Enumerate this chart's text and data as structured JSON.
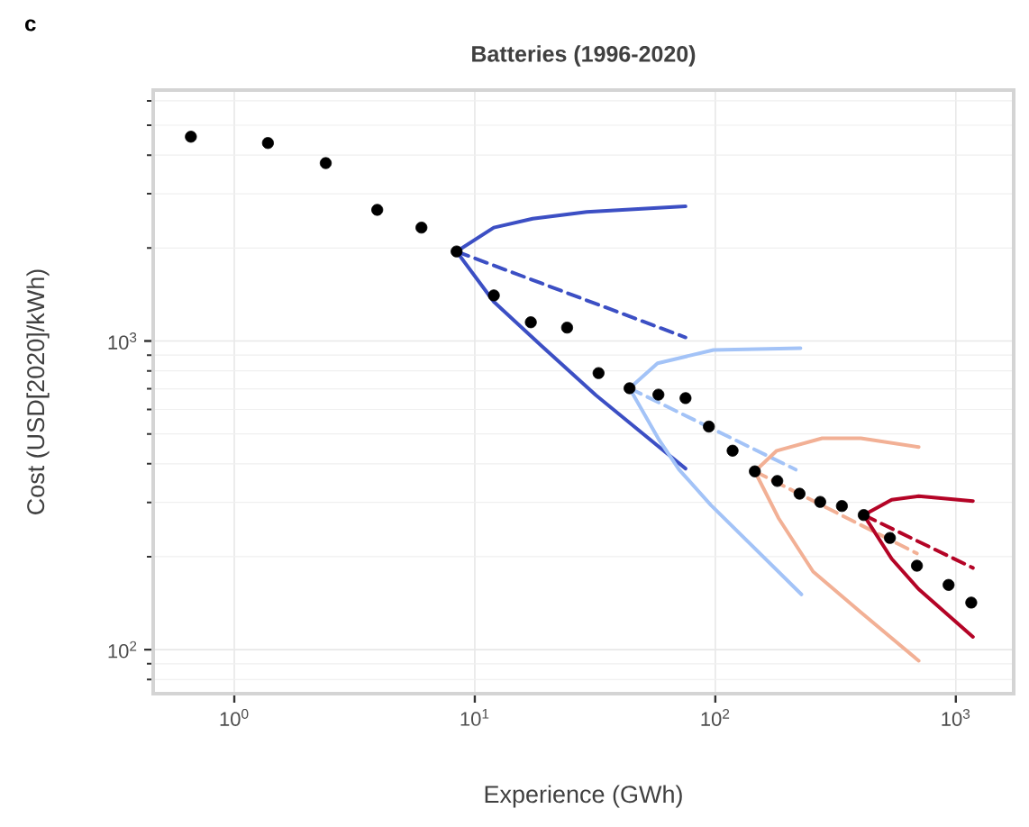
{
  "chart_data": {
    "type": "line",
    "title": "Batteries (1996-2020)",
    "xlabel": "Experience (GWh)",
    "ylabel": "Cost (USD[2020]/kWh)",
    "annotations": [
      "c"
    ],
    "log": "xy",
    "grid": true,
    "xlim": [
      0.46,
      1740
    ],
    "ylim": [
      72,
      6500
    ],
    "xticks": [
      {
        "value": 1,
        "label": "10$^{0}$"
      },
      {
        "value": 10,
        "label": "10$^{1}$"
      },
      {
        "value": 100,
        "label": "10$^{2}$"
      },
      {
        "value": 1000,
        "label": "10$^{3}$"
      }
    ],
    "yticks": [
      {
        "value": 100,
        "label": "10$^{2}$"
      },
      {
        "value": 1000,
        "label": "10$^{3}$"
      }
    ],
    "series": [
      {
        "color": "#3c4fc4",
        "line_style": "solid",
        "x": [
          8.4,
          12.0,
          17.4,
          29.2,
          75.2
        ],
        "values": [
          1950,
          2330,
          2490,
          2620,
          2730
        ]
      },
      {
        "color": "#3c4fc4",
        "line_style": "dashed",
        "x": [
          8.4,
          75.2
        ],
        "values": [
          1950,
          1027
        ]
      },
      {
        "color": "#3c4fc4",
        "line_style": "solid",
        "x": [
          8.4,
          12.0,
          19.0,
          31.9,
          75.2
        ],
        "values": [
          1950,
          1340,
          962,
          667,
          386
        ]
      },
      {
        "color": "#a3c3f7",
        "line_style": "solid",
        "x": [
          44.0,
          57.5,
          98.2,
          226
        ],
        "values": [
          703,
          847,
          935,
          948
        ]
      },
      {
        "color": "#a3c3f7",
        "line_style": "dashed",
        "x": [
          44.0,
          216
        ],
        "values": [
          703,
          383
        ]
      },
      {
        "color": "#a3c3f7",
        "line_style": "solid",
        "x": [
          44.0,
          58.5,
          70.7,
          95.8,
          228
        ],
        "values": [
          703,
          477,
          383,
          294,
          151
        ]
      },
      {
        "color": "#f2b095",
        "line_style": "solid",
        "x": [
          146,
          180,
          278,
          403,
          701
        ],
        "values": [
          378,
          441,
          484,
          484,
          453
        ]
      },
      {
        "color": "#f2b095",
        "line_style": "dashed",
        "x": [
          146,
          689
        ],
        "values": [
          378,
          205
        ]
      },
      {
        "color": "#f2b095",
        "line_style": "solid",
        "x": [
          146,
          183,
          255,
          403,
          701
        ],
        "values": [
          378,
          267,
          179,
          132,
          92
        ]
      },
      {
        "color": "#b40426",
        "line_style": "solid",
        "x": [
          414,
          541,
          701,
          1178
        ],
        "values": [
          273,
          306,
          314,
          303
        ]
      },
      {
        "color": "#b40426",
        "line_style": "dashed",
        "x": [
          414,
          1178
        ],
        "values": [
          273,
          184
        ]
      },
      {
        "color": "#b40426",
        "line_style": "solid",
        "x": [
          414,
          541,
          701,
          1178
        ],
        "values": [
          273,
          197,
          157,
          110
        ]
      },
      {
        "type": "scatter",
        "color": "#000000",
        "marker": "circle",
        "x": [
          0.66,
          1.38,
          2.4,
          3.93,
          6.0,
          8.4,
          12.0,
          17.1,
          24.2,
          32.7,
          44.0,
          58,
          75.2,
          94,
          118,
          146,
          181,
          224,
          273,
          336,
          414,
          532,
          689,
          933,
          1159
        ],
        "values": [
          4590,
          4380,
          3770,
          2660,
          2330,
          1950,
          1405,
          1150,
          1105,
          787,
          703,
          670,
          653,
          528,
          441,
          378,
          352,
          320,
          301,
          292,
          273,
          230,
          187,
          162,
          142
        ]
      }
    ]
  }
}
